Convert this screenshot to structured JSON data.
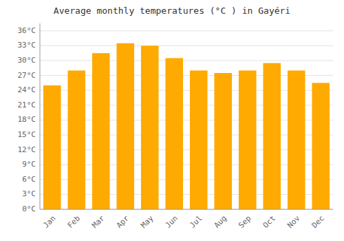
{
  "chart_data": {
    "type": "bar",
    "title": "Average monthly temperatures (°C ) in Gayéri",
    "categories": [
      "Jan",
      "Feb",
      "Mar",
      "Apr",
      "May",
      "Jun",
      "Jul",
      "Aug",
      "Sep",
      "Oct",
      "Nov",
      "Dec"
    ],
    "values": [
      25.0,
      28.0,
      31.5,
      33.5,
      33.0,
      30.5,
      28.0,
      27.5,
      28.0,
      29.5,
      28.0,
      25.5
    ],
    "color": "#FFAA00",
    "ylim": [
      0,
      37.5
    ],
    "yticks": [
      {
        "value": 0,
        "label": "0°C"
      },
      {
        "value": 3,
        "label": "3°C"
      },
      {
        "value": 6,
        "label": "6°C"
      },
      {
        "value": 9,
        "label": "9°C"
      },
      {
        "value": 12,
        "label": "12°C"
      },
      {
        "value": 15,
        "label": "15°C"
      },
      {
        "value": 18,
        "label": "18°C"
      },
      {
        "value": 21,
        "label": "21°C"
      },
      {
        "value": 24,
        "label": "24°C"
      },
      {
        "value": 27,
        "label": "27°C"
      },
      {
        "value": 30,
        "label": "30°C"
      },
      {
        "value": 33,
        "label": "33°C"
      },
      {
        "value": 36,
        "label": "36°C"
      }
    ],
    "grid": true
  }
}
